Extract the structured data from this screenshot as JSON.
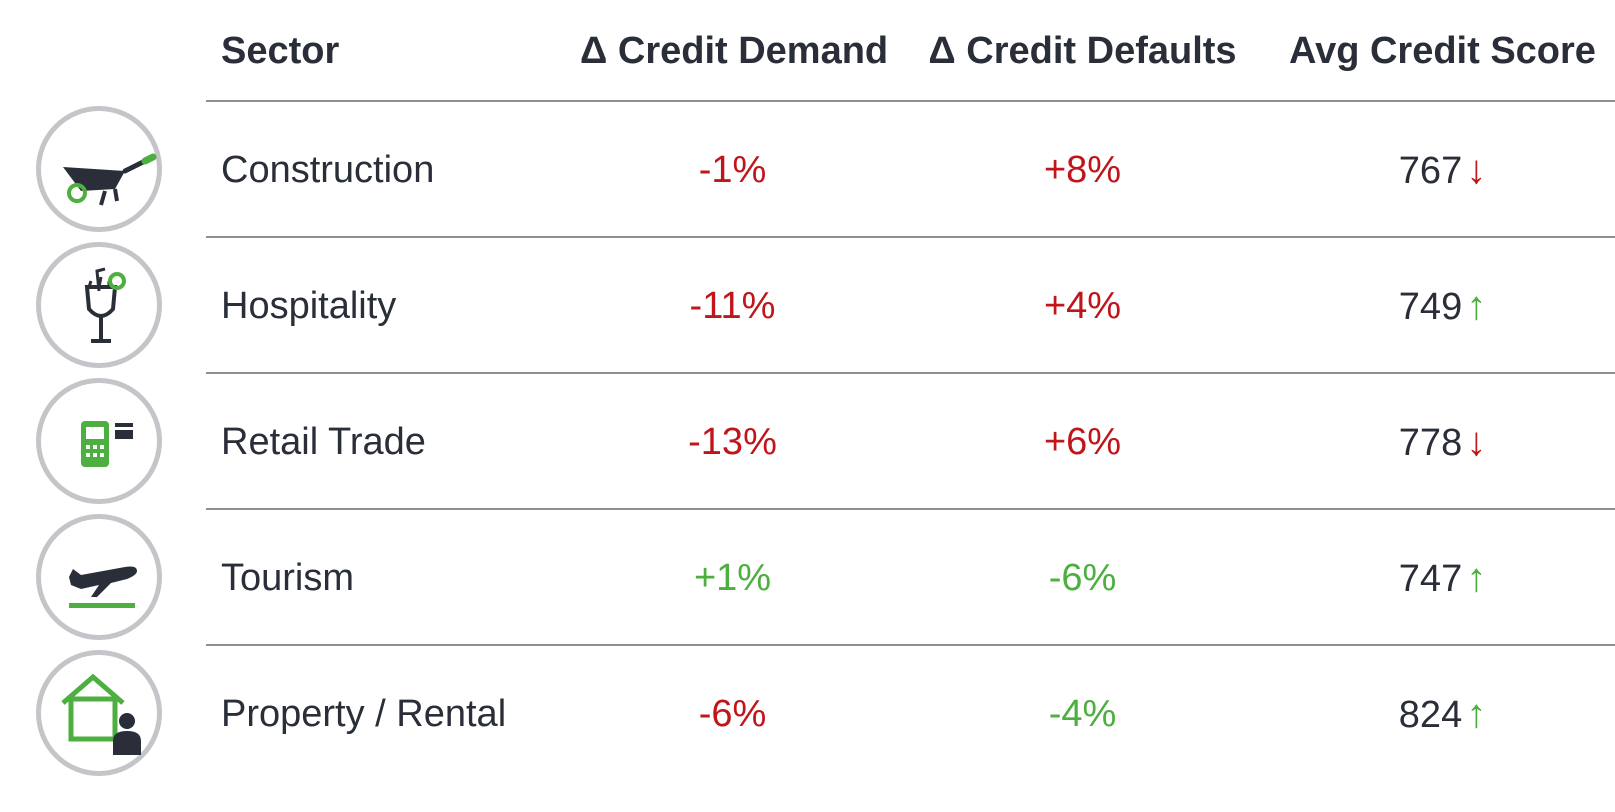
{
  "header": {
    "sector": "Sector",
    "demand": "Δ Credit Demand",
    "defaults": "Δ Credit Defaults",
    "score": "Avg Credit Score"
  },
  "colors": {
    "negative": "#c0151b",
    "positive": "#4caf3f",
    "text": "#2a2e39",
    "icon_ring": "#c4c5c8"
  },
  "rows": [
    {
      "sector": "Construction",
      "icon": "wheelbarrow-icon",
      "demand": "-1%",
      "defaults": "+8%",
      "score": "767",
      "arrow": "↓"
    },
    {
      "sector": "Hospitality",
      "icon": "cocktail-icon",
      "demand": "-11%",
      "defaults": "+4%",
      "score": "749",
      "arrow": "↑"
    },
    {
      "sector": "Retail Trade",
      "icon": "card-terminal-icon",
      "demand": "-13%",
      "defaults": "+6%",
      "score": "778",
      "arrow": "↓"
    },
    {
      "sector": "Tourism",
      "icon": "airplane-icon",
      "demand": "+1%",
      "defaults": "-6%",
      "score": "747",
      "arrow": "↑"
    },
    {
      "sector": "Property / Rental",
      "icon": "house-person-icon",
      "demand": "-6%",
      "defaults": "-4%",
      "score": "824",
      "arrow": "↑"
    }
  ]
}
